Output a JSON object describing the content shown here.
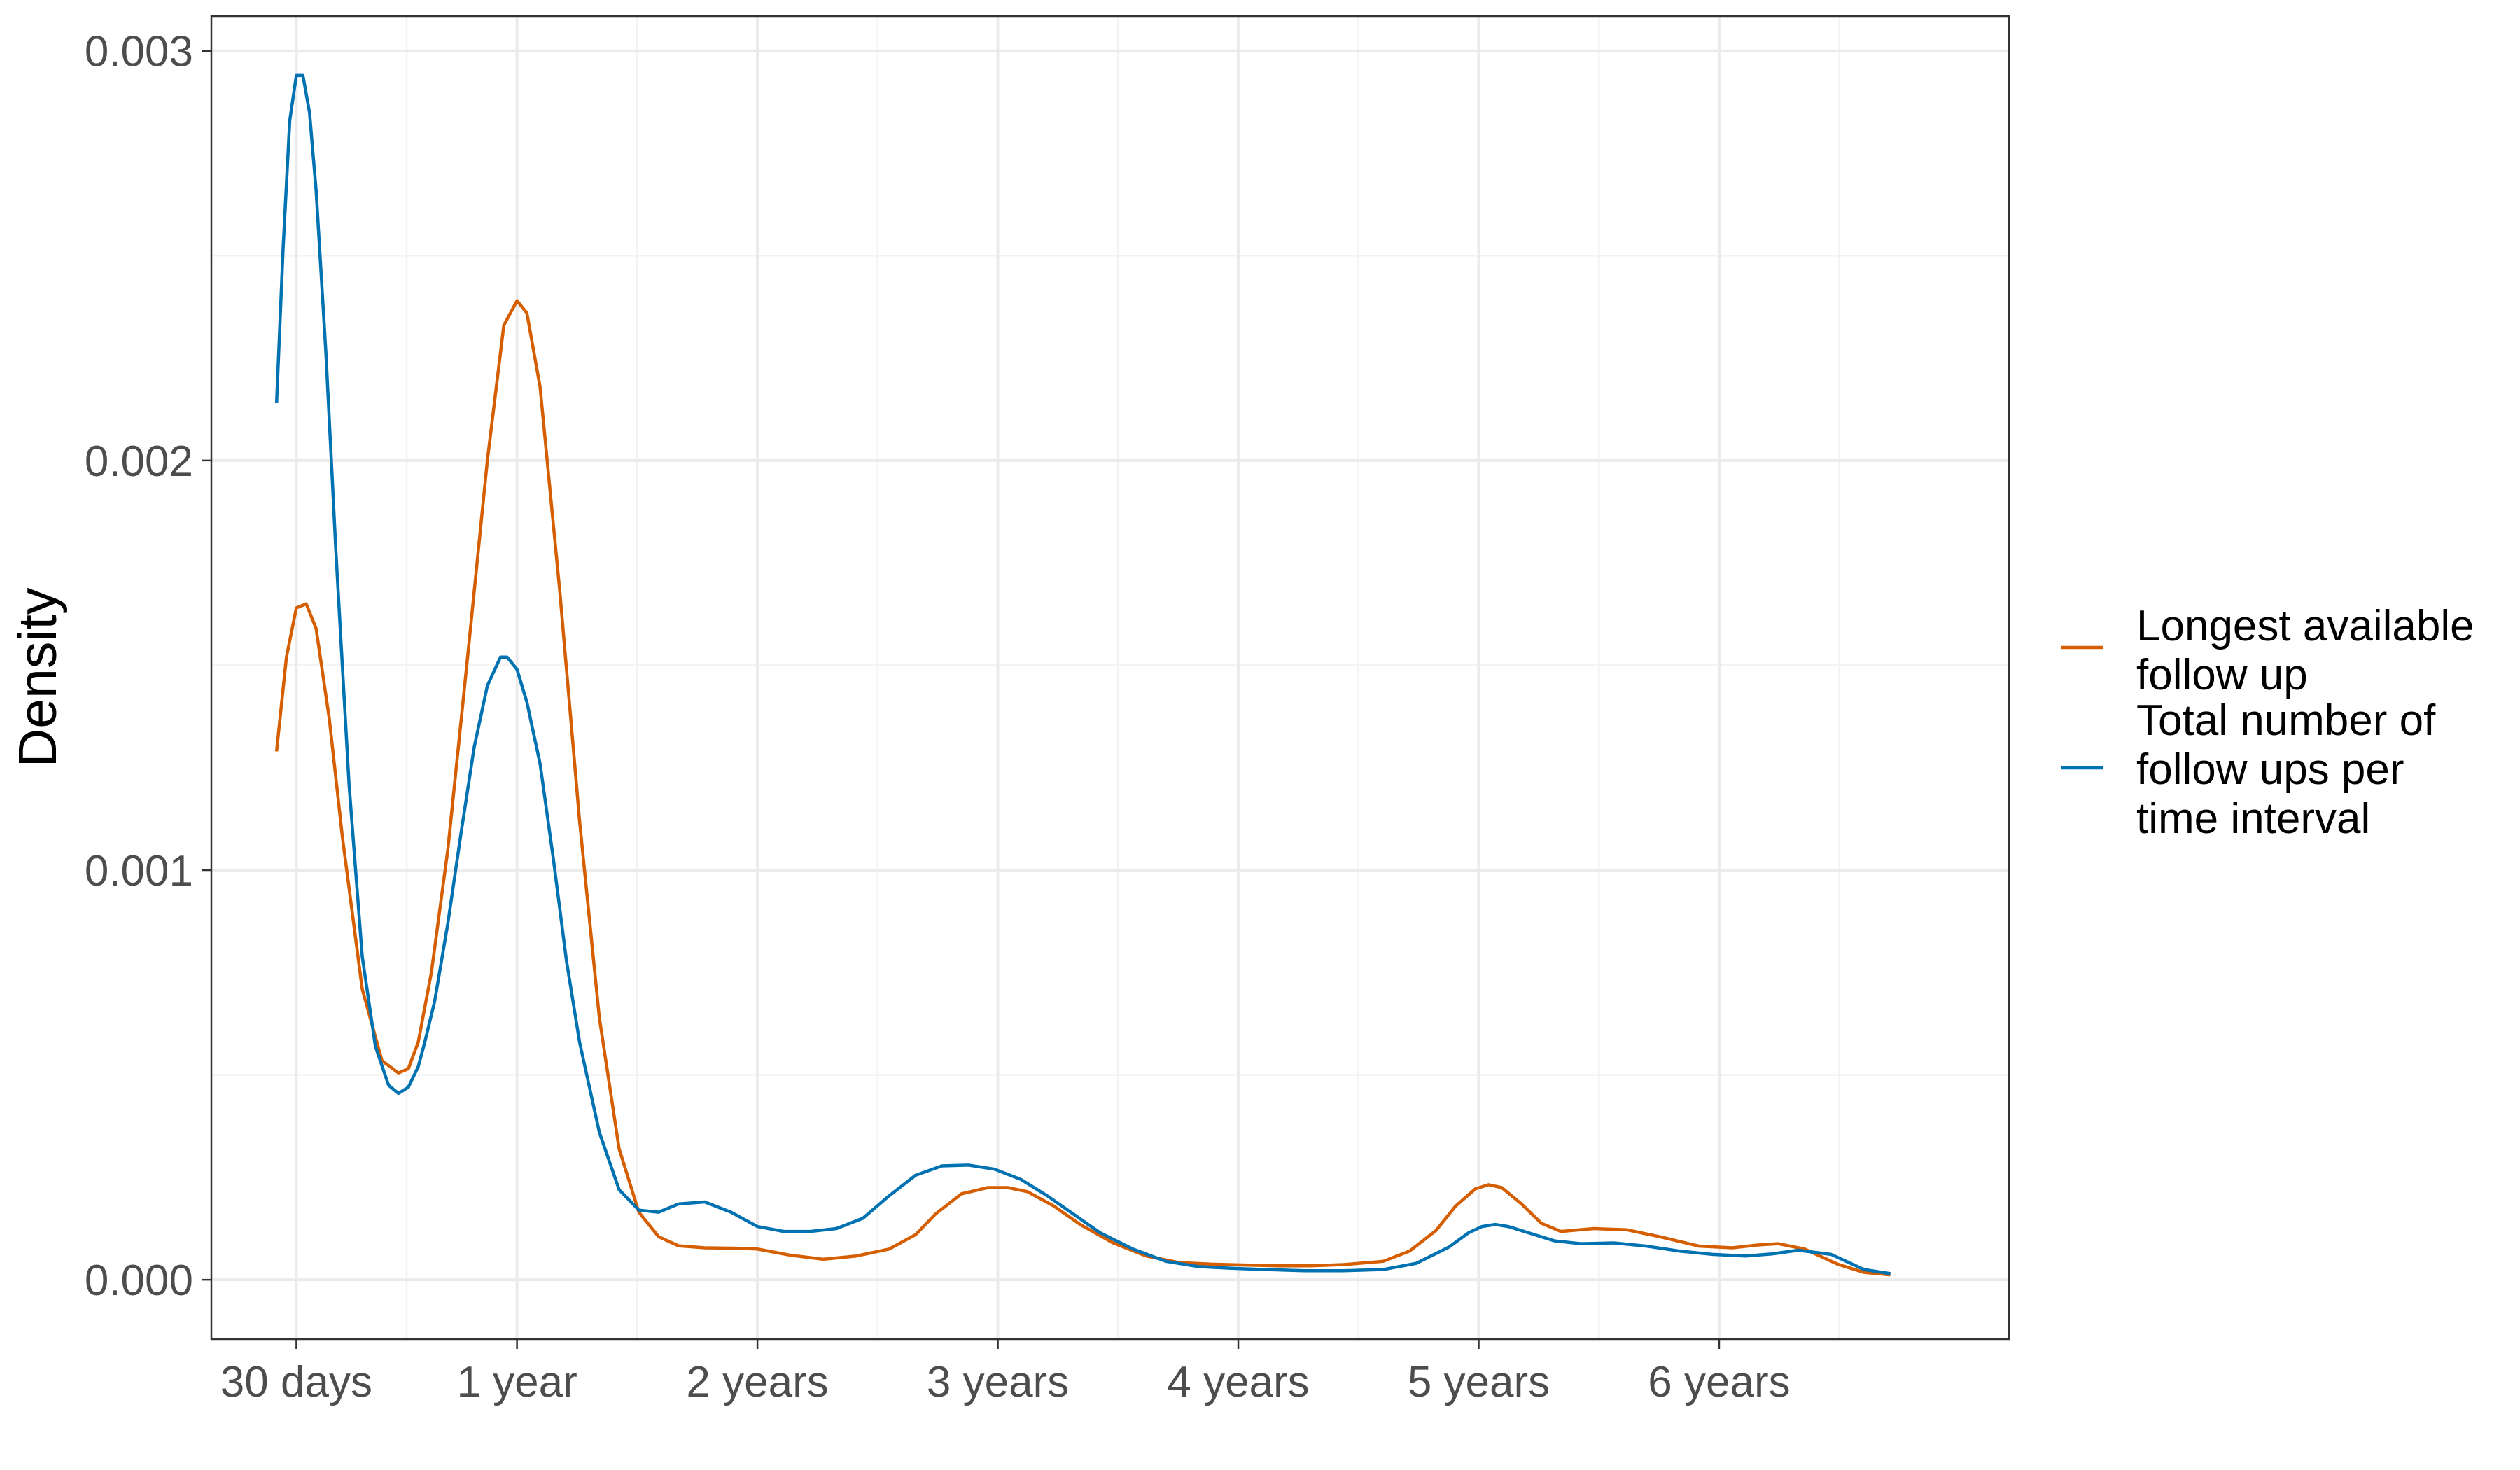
{
  "chart_data": {
    "type": "line",
    "title": "",
    "xlabel": "",
    "ylabel": "Density",
    "x_unit": "days",
    "x_ticks": [
      {
        "value": 30,
        "label": "30 days"
      },
      {
        "value": 365,
        "label": "1 year"
      },
      {
        "value": 730,
        "label": "2 years"
      },
      {
        "value": 1095,
        "label": "3 years"
      },
      {
        "value": 1460,
        "label": "4 years"
      },
      {
        "value": 1825,
        "label": "5 years"
      },
      {
        "value": 2190,
        "label": "6 years"
      }
    ],
    "x_minor_breaks": [
      197.5,
      547.5,
      912.5,
      1277.5,
      1642.5,
      2007.5,
      2372.5
    ],
    "y_ticks": [
      {
        "value": 0,
        "label": "0.000"
      },
      {
        "value": 0.001,
        "label": "0.001"
      },
      {
        "value": 0.002,
        "label": "0.002"
      },
      {
        "value": 0.003,
        "label": "0.003"
      }
    ],
    "y_minor_breaks": [
      0.0005,
      0.0015,
      0.0025
    ],
    "xlim": [
      -99,
      2630
    ],
    "ylim": [
      -0.000145,
      0.003085
    ],
    "grid": true,
    "legend_position": "right",
    "series": [
      {
        "name": "Longest available follow up",
        "color": "#D55E00",
        "x": [
          0,
          15,
          30,
          45,
          60,
          80,
          100,
          130,
          160,
          185,
          200,
          215,
          235,
          260,
          290,
          320,
          345,
          365,
          380,
          400,
          430,
          460,
          490,
          520,
          550,
          580,
          610,
          650,
          700,
          730,
          780,
          830,
          880,
          930,
          970,
          1000,
          1040,
          1080,
          1110,
          1140,
          1180,
          1220,
          1270,
          1320,
          1370,
          1420,
          1470,
          1520,
          1570,
          1620,
          1680,
          1720,
          1760,
          1790,
          1820,
          1840,
          1860,
          1890,
          1920,
          1950,
          2000,
          2050,
          2100,
          2160,
          2210,
          2250,
          2280,
          2320,
          2370,
          2410,
          2450
        ],
        "y": [
          0.00129,
          0.00152,
          0.00164,
          0.00165,
          0.00159,
          0.00137,
          0.00108,
          0.00071,
          0.000535,
          0.000505,
          0.000515,
          0.00058,
          0.00075,
          0.00105,
          0.00152,
          0.002,
          0.00233,
          0.00239,
          0.00236,
          0.00218,
          0.00168,
          0.00112,
          0.00064,
          0.00032,
          0.000165,
          0.000105,
          8.3e-05,
          7.8e-05,
          7.7e-05,
          7.5e-05,
          6e-05,
          5e-05,
          5.8e-05,
          7.5e-05,
          0.00011,
          0.00016,
          0.00021,
          0.000225,
          0.000225,
          0.000215,
          0.00018,
          0.000135,
          9e-05,
          5.8e-05,
          4.2e-05,
          3.8e-05,
          3.6e-05,
          3.4e-05,
          3.4e-05,
          3.7e-05,
          4.5e-05,
          7e-05,
          0.00012,
          0.00018,
          0.000222,
          0.000232,
          0.000225,
          0.000185,
          0.000138,
          0.000118,
          0.000125,
          0.000122,
          0.000105,
          8.2e-05,
          7.8e-05,
          8.5e-05,
          8.8e-05,
          7.5e-05,
          3.8e-05,
          1.8e-05,
          1.2e-05
        ]
      },
      {
        "name": "Total number of follow ups per time interval",
        "color": "#0072B2",
        "x": [
          0,
          10,
          20,
          30,
          40,
          50,
          60,
          75,
          90,
          110,
          130,
          150,
          170,
          185,
          200,
          215,
          225,
          240,
          260,
          280,
          300,
          320,
          340,
          350,
          365,
          380,
          400,
          420,
          440,
          460,
          490,
          520,
          550,
          580,
          610,
          650,
          690,
          730,
          770,
          810,
          850,
          890,
          930,
          970,
          1010,
          1050,
          1090,
          1130,
          1170,
          1210,
          1250,
          1300,
          1350,
          1400,
          1450,
          1500,
          1560,
          1620,
          1680,
          1730,
          1780,
          1810,
          1830,
          1850,
          1870,
          1900,
          1940,
          1980,
          2030,
          2080,
          2130,
          2180,
          2230,
          2270,
          2310,
          2360,
          2410,
          2450
        ],
        "y": [
          0.00214,
          0.00252,
          0.00283,
          0.00294,
          0.00294,
          0.00285,
          0.00266,
          0.00226,
          0.00178,
          0.00121,
          0.00079,
          0.00057,
          0.000475,
          0.000455,
          0.00047,
          0.00052,
          0.00058,
          0.00068,
          0.00087,
          0.00109,
          0.0013,
          0.00145,
          0.00152,
          0.00152,
          0.00149,
          0.00141,
          0.00126,
          0.00103,
          0.00078,
          0.00058,
          0.00036,
          0.00022,
          0.00017,
          0.000165,
          0.000185,
          0.00019,
          0.000165,
          0.00013,
          0.000118,
          0.000118,
          0.000125,
          0.00015,
          0.000205,
          0.000255,
          0.000278,
          0.00028,
          0.00027,
          0.000245,
          0.000205,
          0.00016,
          0.000115,
          7.5e-05,
          4.5e-05,
          3.2e-05,
          2.8e-05,
          2.5e-05,
          2.2e-05,
          2.2e-05,
          2.5e-05,
          4e-05,
          8e-05,
          0.000115,
          0.00013,
          0.000135,
          0.00013,
          0.000115,
          9.5e-05,
          8.8e-05,
          9e-05,
          8.2e-05,
          7e-05,
          6.2e-05,
          5.8e-05,
          6.3e-05,
          7.2e-05,
          6.2e-05,
          2.5e-05,
          1.5e-05
        ]
      }
    ]
  }
}
